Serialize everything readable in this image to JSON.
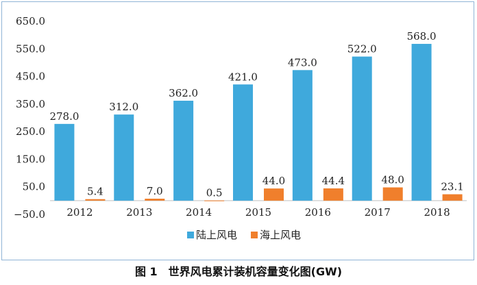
{
  "chart_data": {
    "type": "bar",
    "categories": [
      "2012",
      "2013",
      "2014",
      "2015",
      "2016",
      "2017",
      "2018"
    ],
    "series": [
      {
        "name": "陆上风电",
        "values": [
          278.0,
          312.0,
          362.0,
          421.0,
          473.0,
          522.0,
          568.0
        ],
        "labels": [
          "278.0",
          "312.0",
          "362.0",
          "421.0",
          "473.0",
          "522.0",
          "568.0"
        ],
        "color": "#3fa9dc"
      },
      {
        "name": "海上风电",
        "values": [
          5.4,
          7.0,
          0.5,
          44.0,
          44.4,
          48.0,
          23.1
        ],
        "labels": [
          "5.4",
          "7.0",
          "0.5",
          "44.0",
          "44.4",
          "48.0",
          "23.1"
        ],
        "color": "#f07f2c"
      }
    ],
    "yticks": [
      -50,
      50,
      150,
      250,
      350,
      450,
      550,
      650
    ],
    "ytick_labels": [
      "−50.0",
      "50.0",
      "150.0",
      "250.0",
      "350.0",
      "450.0",
      "550.0",
      "650.0"
    ],
    "ylim": [
      -50,
      650
    ],
    "grid": false,
    "legend": "bottom-center",
    "title": "",
    "xlabel": "",
    "ylabel": ""
  },
  "caption": "图 1　世界风电累计装机容量变化图(GW)"
}
